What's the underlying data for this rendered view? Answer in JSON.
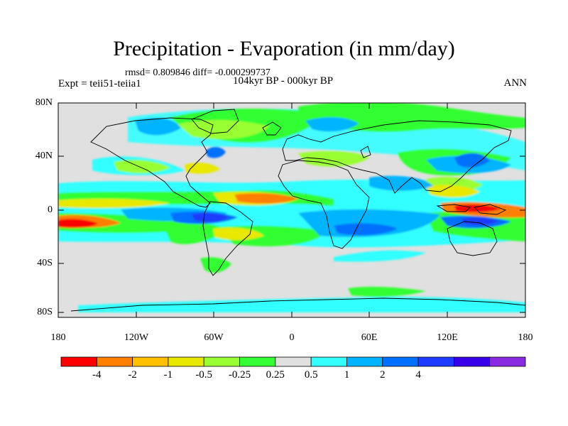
{
  "title": "Precipitation - Evaporation (in mm/day)",
  "stats": "rmsd= 0.809846  diff= -0.000299737",
  "experiment": "Expt = teii51-teiia1",
  "period": "104kyr BP - 000kyr BP",
  "season": "ANN",
  "lat_ticks": [
    "80N",
    "40N",
    "0",
    "40S",
    "80S"
  ],
  "lon_ticks": [
    "180",
    "120W",
    "60W",
    "0",
    "60E",
    "120E",
    "180"
  ],
  "colorbar": {
    "labels": [
      "-4",
      "-2",
      "-1",
      "-0.5",
      "-0.25",
      "0.25",
      "0.5",
      "1",
      "2",
      "4"
    ],
    "colors": [
      "#ff0000",
      "#ff8000",
      "#ffc000",
      "#e8e800",
      "#99ff33",
      "#33ff33",
      "#e0e0e0",
      "#33ffff",
      "#00b4ff",
      "#0070ff",
      "#1e3cff",
      "#3700e8",
      "#8a2be2"
    ]
  },
  "colors": {
    "ocean_neutral": "#e0e0e0",
    "coastline": "#000000"
  }
}
